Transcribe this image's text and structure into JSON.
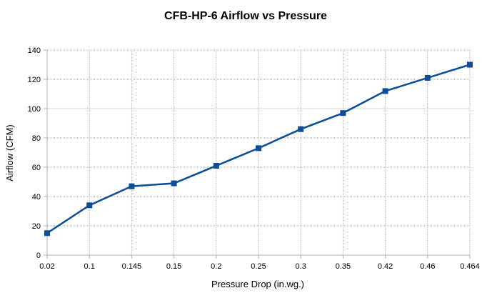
{
  "chart_data": {
    "type": "line",
    "title": "CFB-HP-6 Airflow vs Pressure",
    "xlabel": "Pressure Drop (in.wg.)",
    "ylabel": "Airflow (CFM)",
    "categories": [
      "0.02",
      "0.1",
      "0.145",
      "0.15",
      "0.2",
      "0.25",
      "0.3",
      "0.35",
      "0.42",
      "0.46",
      "0.464"
    ],
    "series": [
      {
        "values": [
          15,
          34,
          47,
          49,
          61,
          73,
          86,
          97,
          112,
          121,
          130
        ]
      }
    ],
    "ylim": [
      0,
      140
    ],
    "yticks": [
      0,
      20,
      40,
      60,
      80,
      100,
      120,
      140
    ],
    "grid": "horizontal",
    "legend": "none",
    "colors": {
      "line": "#0b4d96",
      "marker": "#0b4d96",
      "grid": "#b3b3b3",
      "axis": "#b3b3b3"
    }
  }
}
